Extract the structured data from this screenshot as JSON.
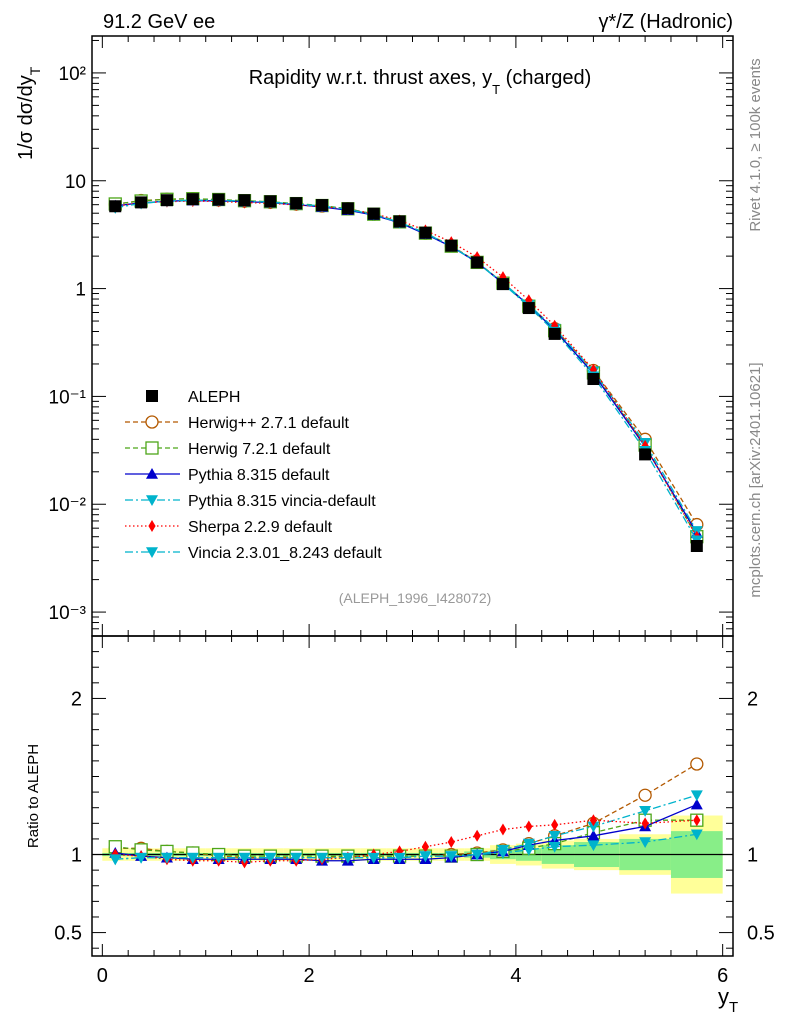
{
  "header": {
    "left": "91.2 GeV ee",
    "right": "γ*/Z (Hadronic)"
  },
  "side_text": {
    "rivet": "Rivet 4.1.0, ≥ 100k events",
    "mcplots": "mcplots.cern.ch [arXiv:2401.10621]"
  },
  "chart_data": {
    "type": "scatter",
    "title": "Rapidity w.r.t. thrust axes, y_T (charged)",
    "analysis_tag": "(ALEPH_1996_I428072)",
    "ylabel_main": "1/σ  dσ/dy_T",
    "ylabel_ratio": "Ratio to ALEPH",
    "xlabel": "y_T",
    "xlim": [
      -0.1,
      6.1
    ],
    "ylim_main": [
      0.0006,
      220
    ],
    "ylim_ratio": [
      0.35,
      2.4
    ],
    "y_scale_main": "log",
    "x_ticks": [
      "0",
      "2",
      "4",
      "6"
    ],
    "y_ticks_main": [
      "10⁻³",
      "10⁻²",
      "10⁻¹",
      "1",
      "10",
      "10²"
    ],
    "y_ticks_ratio": [
      "0.5",
      "1",
      "2"
    ],
    "legend_position": "middle-left",
    "x": [
      0.125,
      0.375,
      0.625,
      0.875,
      1.125,
      1.375,
      1.625,
      1.875,
      2.125,
      2.375,
      2.625,
      2.875,
      3.125,
      3.375,
      3.625,
      3.875,
      4.125,
      4.375,
      4.75,
      5.25,
      5.75
    ],
    "data": {
      "name": "ALEPH",
      "values": [
        5.8,
        6.3,
        6.6,
        6.75,
        6.7,
        6.6,
        6.45,
        6.2,
        5.95,
        5.55,
        4.95,
        4.2,
        3.3,
        2.5,
        1.75,
        1.1,
        0.66,
        0.38,
        0.145,
        0.029,
        0.0041
      ],
      "band_yellow": [
        0.04,
        0.04,
        0.04,
        0.04,
        0.04,
        0.04,
        0.04,
        0.04,
        0.04,
        0.04,
        0.04,
        0.04,
        0.04,
        0.04,
        0.04,
        0.06,
        0.07,
        0.09,
        0.1,
        0.13,
        0.25
      ],
      "band_green": [
        0.01,
        0.01,
        0.01,
        0.01,
        0.01,
        0.01,
        0.01,
        0.01,
        0.01,
        0.01,
        0.01,
        0.01,
        0.01,
        0.01,
        0.02,
        0.03,
        0.04,
        0.06,
        0.08,
        0.1,
        0.15
      ]
    },
    "series": [
      {
        "name": "Herwig++ 2.7.1 default",
        "color": "#b35900",
        "dash": "5,3",
        "marker": "circle-open",
        "ratio": [
          1.04,
          1.04,
          1.02,
          1.01,
          0.99,
          0.98,
          0.98,
          0.98,
          0.98,
          0.99,
          0.99,
          0.99,
          0.99,
          1.0,
          1.01,
          1.03,
          1.07,
          1.12,
          1.2,
          1.38,
          1.58
        ]
      },
      {
        "name": "Herwig 7.2.1 default",
        "color": "#4da619",
        "dash": "5,3",
        "marker": "square-open",
        "ratio": [
          1.05,
          1.03,
          1.02,
          1.01,
          1.0,
          0.99,
          0.99,
          0.99,
          0.99,
          0.99,
          0.99,
          0.99,
          0.99,
          0.99,
          1.0,
          1.02,
          1.04,
          1.07,
          1.14,
          1.22,
          1.22
        ]
      },
      {
        "name": "Pythia 8.315 default",
        "color": "#0000cc",
        "dash": "",
        "marker": "triangle-up",
        "ratio": [
          1.01,
          0.99,
          0.98,
          0.97,
          0.97,
          0.97,
          0.97,
          0.97,
          0.96,
          0.96,
          0.97,
          0.97,
          0.97,
          0.98,
          1.0,
          1.02,
          1.06,
          1.09,
          1.12,
          1.18,
          1.32
        ]
      },
      {
        "name": "Pythia 8.315 vincia-default",
        "color": "#00b3cc",
        "dash": "8,3,2,3",
        "marker": "triangle-down",
        "ratio": [
          0.97,
          0.98,
          0.98,
          0.98,
          0.98,
          0.98,
          0.98,
          0.98,
          0.98,
          0.98,
          0.98,
          0.98,
          0.99,
          0.99,
          1.0,
          1.03,
          1.07,
          1.12,
          1.18,
          1.28,
          1.38
        ]
      },
      {
        "name": "Sherpa 2.2.9 default",
        "color": "#ff0000",
        "dash": "1.5,2.5",
        "marker": "diamond",
        "ratio": [
          1.0,
          0.99,
          0.97,
          0.96,
          0.96,
          0.95,
          0.96,
          0.96,
          0.97,
          0.98,
          1.0,
          1.02,
          1.05,
          1.08,
          1.12,
          1.16,
          1.18,
          1.19,
          1.22,
          1.2,
          1.22
        ]
      },
      {
        "name": "Vincia 2.3.01_8.243 default",
        "color": "#00b3cc",
        "dash": "8,3,2,3",
        "marker": "triangle-down",
        "ratio": [
          0.97,
          0.98,
          0.98,
          0.98,
          0.98,
          0.98,
          0.98,
          0.98,
          0.98,
          0.98,
          0.98,
          0.98,
          0.99,
          0.99,
          1.0,
          1.01,
          1.03,
          1.05,
          1.06,
          1.08,
          1.13
        ]
      }
    ]
  }
}
